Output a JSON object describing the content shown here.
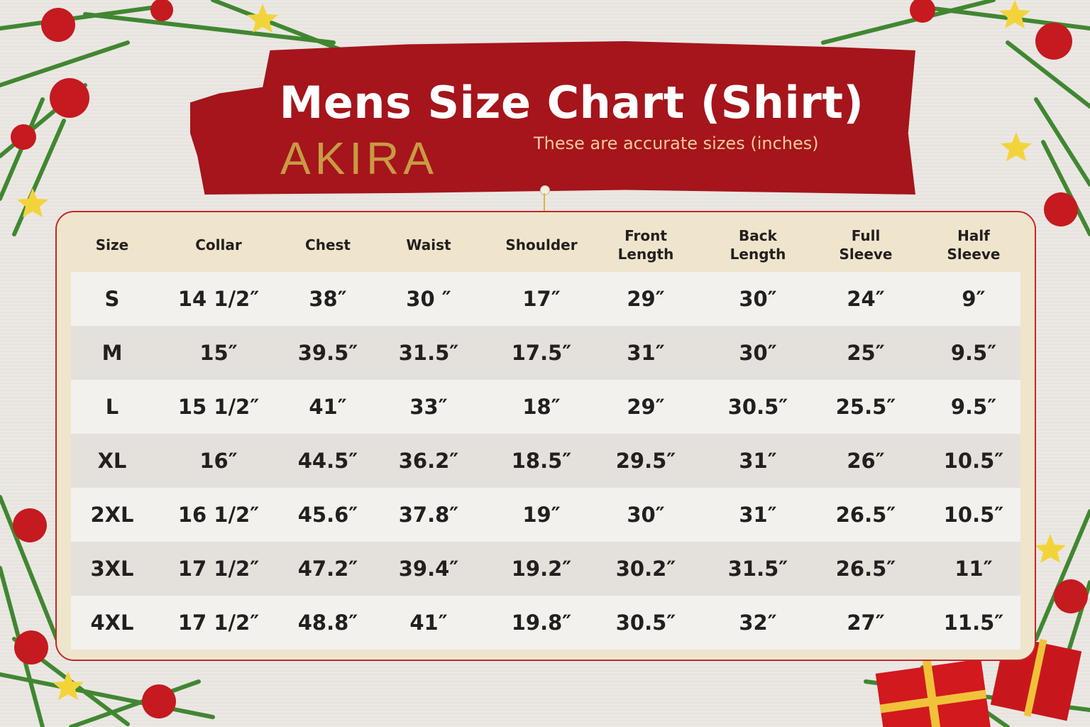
{
  "title": "Mens Size Chart (Shirt)",
  "subtitle": "These are accurate sizes (inches)",
  "logo": "AKIRA",
  "colors": {
    "banner": "#a5151b",
    "logo": "#c99a45",
    "subtitle": "#f6c99c",
    "panel": "#efe5cc",
    "border": "#c0282c"
  },
  "table": {
    "headers": [
      "Size",
      "Collar",
      "Chest",
      "Waist",
      "Shoulder",
      "Front\nLength",
      "Back\nLength",
      "Full\nSleeve",
      "Half\nSleeve"
    ],
    "rows": [
      [
        "S",
        "14 1/2″",
        "38″",
        "30 ″",
        "17″",
        "29″",
        "30″",
        "24″",
        "9″"
      ],
      [
        "M",
        "15″",
        "39.5″",
        "31.5″",
        "17.5″",
        "31″",
        "30″",
        "25″",
        "9.5″"
      ],
      [
        "L",
        "15 1/2″",
        "41″",
        "33″",
        "18″",
        "29″",
        "30.5″",
        "25.5″",
        "9.5″"
      ],
      [
        "XL",
        "16″",
        "44.5″",
        "36.2″",
        "18.5″",
        "29.5″",
        "31″",
        "26″",
        "10.5″"
      ],
      [
        "2XL",
        "16 1/2″",
        "45.6″",
        "37.8″",
        "19″",
        "30″",
        "31″",
        "26.5″",
        "10.5″"
      ],
      [
        "3XL",
        "17 1/2″",
        "47.2″",
        "39.4″",
        "19.2″",
        "30.2″",
        "31.5″",
        "26.5″",
        "11″"
      ],
      [
        "4XL",
        "17 1/2″",
        "48.8″",
        "41″",
        "19.8″",
        "30.5″",
        "32″",
        "27″",
        "11.5″"
      ]
    ]
  },
  "decorations": [
    "pine-branch-icon",
    "ornament-icon",
    "star-icon",
    "gift-box-icon"
  ]
}
